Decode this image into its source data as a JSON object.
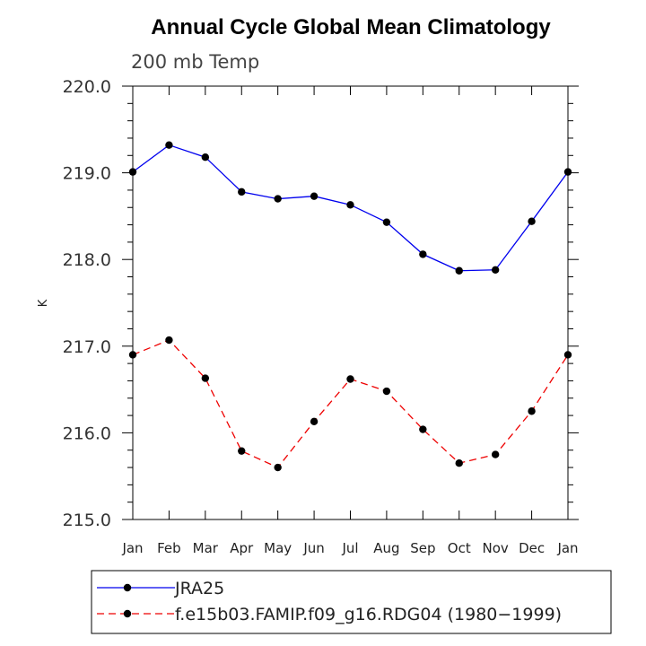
{
  "chart_data": {
    "type": "line",
    "title": "Annual Cycle Global Mean Climatology",
    "subtitle": "200 mb Temp",
    "xlabel": "",
    "ylabel": "K",
    "categories": [
      "Jan",
      "Feb",
      "Mar",
      "Apr",
      "May",
      "Jun",
      "Jul",
      "Aug",
      "Sep",
      "Oct",
      "Nov",
      "Dec",
      "Jan"
    ],
    "ylim": [
      215.0,
      220.0
    ],
    "y_ticks": [
      "215.0",
      "216.0",
      "217.0",
      "218.0",
      "219.0",
      "220.0"
    ],
    "grid": false,
    "legend_position": "bottom",
    "series": [
      {
        "name": "JRA25",
        "color": "#0000ee",
        "dash": "solid",
        "values": [
          219.01,
          219.32,
          219.18,
          218.78,
          218.7,
          218.73,
          218.63,
          218.43,
          218.06,
          217.87,
          217.88,
          218.44,
          219.01
        ]
      },
      {
        "name": "f.e15b03.FAMIP.f09_g16.RDG04 (1980−1999)",
        "color": "#ee0000",
        "dash": "dashed",
        "values": [
          216.9,
          217.07,
          216.63,
          215.79,
          215.6,
          216.13,
          216.62,
          216.48,
          216.04,
          215.65,
          215.75,
          216.25,
          216.9
        ]
      }
    ]
  }
}
